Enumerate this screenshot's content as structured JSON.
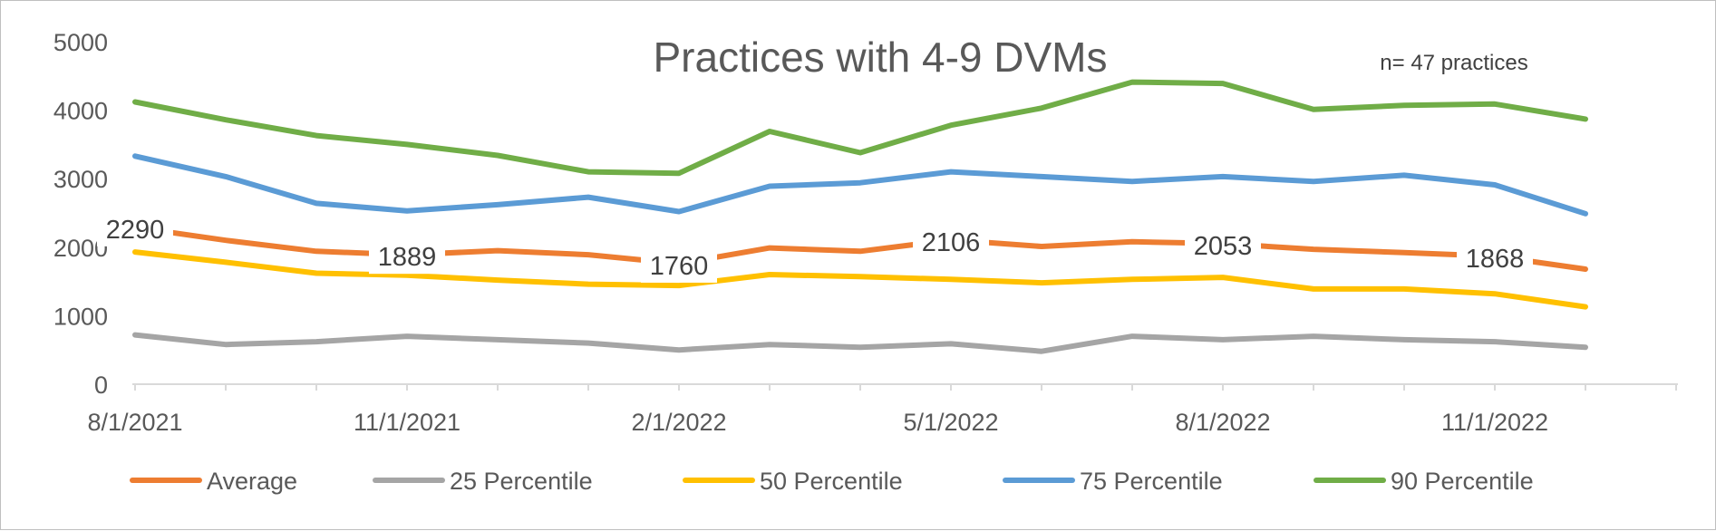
{
  "chart_data": {
    "type": "line",
    "title": "Practices with 4-9 DVMs",
    "annotation": "n= 47 practices",
    "xlabel": "",
    "ylabel": "",
    "ylim": [
      0,
      5000
    ],
    "yticks": [
      "0",
      "1000",
      "2000",
      "3000",
      "4000",
      "5000"
    ],
    "x_tick_labels": [
      "8/1/2021",
      "11/1/2021",
      "2/1/2022",
      "5/1/2022",
      "8/1/2022",
      "11/1/2022"
    ],
    "categories": [
      "8/1/2021",
      "9/1/2021",
      "10/1/2021",
      "11/1/2021",
      "12/1/2021",
      "1/1/2022",
      "2/1/2022",
      "3/1/2022",
      "4/1/2022",
      "5/1/2022",
      "6/1/2022",
      "7/1/2022",
      "8/1/2022",
      "9/1/2022",
      "10/1/2022",
      "11/1/2022",
      "12/1/2022"
    ],
    "series": [
      {
        "name": "Average",
        "color": "#ED7D31",
        "values": [
          2290,
          2100,
          1940,
          1889,
          1950,
          1890,
          1760,
          1990,
          1940,
          2106,
          2010,
          2080,
          2053,
          1970,
          1920,
          1868,
          1680
        ]
      },
      {
        "name": "25 Percentile",
        "color": "#A5A5A5",
        "values": [
          720,
          580,
          620,
          700,
          650,
          600,
          500,
          580,
          540,
          590,
          480,
          700,
          650,
          700,
          650,
          620,
          540
        ]
      },
      {
        "name": "50 Percentile",
        "color": "#FFC000",
        "values": [
          1930,
          1780,
          1620,
          1590,
          1520,
          1460,
          1440,
          1600,
          1570,
          1530,
          1480,
          1530,
          1560,
          1390,
          1390,
          1320,
          1130
        ]
      },
      {
        "name": "75 Percentile",
        "color": "#5B9BD5",
        "values": [
          3330,
          3030,
          2640,
          2530,
          2620,
          2730,
          2520,
          2890,
          2940,
          3100,
          3030,
          2960,
          3030,
          2960,
          3050,
          2910,
          2490
        ]
      },
      {
        "name": "90 Percentile",
        "color": "#70AD47",
        "values": [
          4120,
          3860,
          3630,
          3500,
          3340,
          3100,
          3080,
          3690,
          3380,
          3780,
          4030,
          4410,
          4390,
          4010,
          4070,
          4090,
          3870
        ]
      }
    ],
    "data_labels": {
      "series": "Average",
      "indices": [
        0,
        3,
        6,
        9,
        12,
        15
      ],
      "texts": [
        "2290",
        "1889",
        "1760",
        "2106",
        "2053",
        "1868"
      ]
    },
    "legend_position": "bottom"
  }
}
